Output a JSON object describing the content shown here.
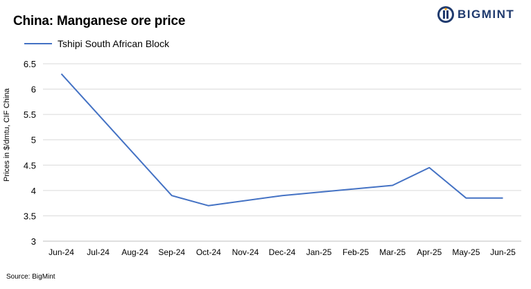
{
  "logo": {
    "name": "BIGMINT",
    "icon": "bigmint-logo-icon"
  },
  "source_text": "Source: BigMint",
  "colors": {
    "series": "#4472c4",
    "grid": "#d9d9d9",
    "logo": "#1f3a6e"
  },
  "chart_data": {
    "type": "line",
    "title": "China: Manganese ore price",
    "xlabel": "",
    "ylabel": "Prices in $/dmtu, CIF China",
    "ylim": [
      3,
      6.5
    ],
    "yticks": [
      "6.5",
      "6",
      "5.5",
      "5",
      "4.5",
      "4",
      "3.5",
      "3"
    ],
    "categories": [
      "Jun-24",
      "Jul-24",
      "Aug-24",
      "Sep-24",
      "Oct-24",
      "Nov-24",
      "Dec-24",
      "Jan-25",
      "Feb-25",
      "Mar-25",
      "Apr-25",
      "May-25",
      "Jun-25"
    ],
    "series": [
      {
        "name": "Tshipi South African Block",
        "x": [
          0,
          3,
          4,
          6,
          9,
          10,
          11,
          12
        ],
        "values": [
          6.3,
          3.9,
          3.7,
          3.9,
          4.1,
          4.45,
          3.85,
          3.85
        ]
      }
    ],
    "legend": "top-left",
    "grid": true
  }
}
